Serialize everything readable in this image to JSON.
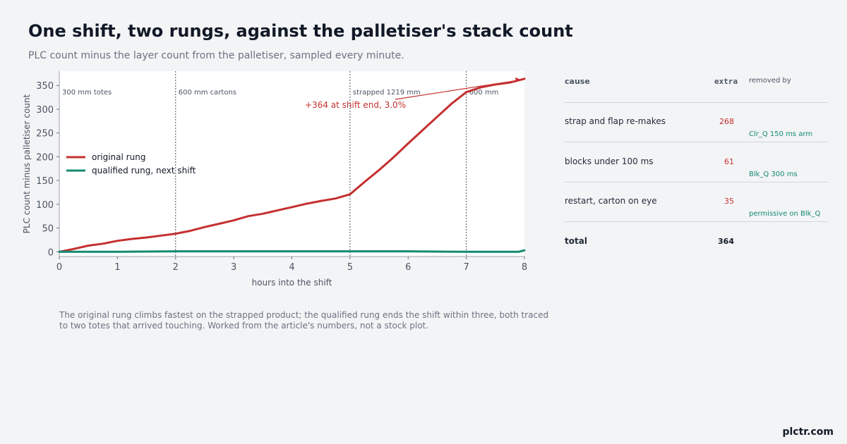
{
  "title": "One shift, two rungs, against the palletiser's stack count",
  "subtitle": "PLC count minus the layer count from the palletiser, sampled every minute.",
  "note": "The original rung climbs fastest on the strapped product; the qualified rung ends the shift within three, both traced to two totes that arrived touching. Worked from the article's numbers, not a stock plot.",
  "brand": "plctr.com",
  "colors": {
    "original": "#c53030",
    "qualified": "#138a72"
  },
  "chart_data": {
    "type": "line",
    "xlabel": "hours into the shift",
    "ylabel": "PLC count minus palletiser count",
    "xlim": [
      0,
      8
    ],
    "ylim": [
      -10,
      380
    ],
    "xticks": [
      0,
      1,
      2,
      3,
      4,
      5,
      6,
      7,
      8
    ],
    "yticks": [
      0,
      50,
      100,
      150,
      200,
      250,
      300,
      350
    ],
    "grid": false,
    "legend_position": "center-left",
    "series": [
      {
        "name": "original rung",
        "color": "#c53030",
        "x": [
          0,
          0.25,
          0.5,
          0.75,
          1,
          1.25,
          1.5,
          1.75,
          2,
          2.25,
          2.5,
          2.75,
          3,
          3.25,
          3.5,
          3.75,
          4,
          4.25,
          4.5,
          4.75,
          5,
          5.25,
          5.5,
          5.75,
          6,
          6.25,
          6.5,
          6.75,
          7,
          7.25,
          7.5,
          7.75,
          8
        ],
        "y": [
          0,
          6,
          13,
          17,
          23,
          27,
          30,
          34,
          38,
          44,
          52,
          59,
          66,
          75,
          80,
          87,
          94,
          101,
          107,
          112,
          121,
          147,
          172,
          199,
          228,
          256,
          284,
          312,
          336,
          346,
          352,
          356,
          364
        ]
      },
      {
        "name": "qualified rung, next shift",
        "color": "#138a72",
        "x": [
          0,
          1,
          2,
          3,
          4,
          5,
          6,
          7,
          7.9,
          8
        ],
        "y": [
          0,
          0,
          1,
          1,
          1,
          1,
          1,
          0,
          0,
          3
        ]
      }
    ],
    "phases": [
      {
        "x": 0,
        "label": "300 mm totes"
      },
      {
        "x": 2,
        "label": "600 mm cartons"
      },
      {
        "x": 5,
        "label": "strapped 1219 mm"
      },
      {
        "x": 7,
        "label": "600 mm"
      }
    ],
    "annotation": {
      "text": "+364 at shift end, 3.0%",
      "x": 8,
      "y": 364
    }
  },
  "table": {
    "headers": {
      "cause": "cause",
      "extra": "extra",
      "by": "removed by"
    },
    "rows": [
      {
        "cause": "strap and flap re-makes",
        "extra": "268",
        "fix": "Clr_Q 150 ms arm"
      },
      {
        "cause": "blocks under 100 ms",
        "extra": "61",
        "fix": "Blk_Q 300 ms"
      },
      {
        "cause": "restart, carton on eye",
        "extra": "35",
        "fix": "permissive on Blk_Q"
      }
    ],
    "total": {
      "label": "total",
      "value": "364"
    }
  }
}
